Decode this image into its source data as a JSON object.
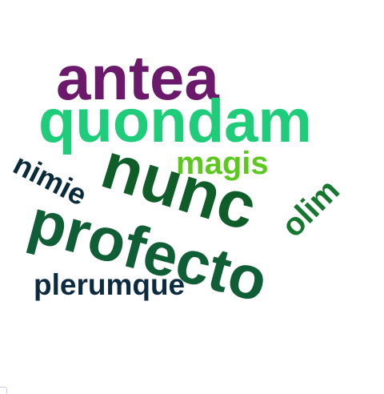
{
  "words": {
    "antea": {
      "text": "antea",
      "color": "#6b1a6b"
    },
    "quondam": {
      "text": "quondam",
      "color": "#1fcc7a"
    },
    "nunc": {
      "text": "nunc",
      "color": "#0f5e2a"
    },
    "magis": {
      "text": "magis",
      "color": "#5cc81e"
    },
    "nimie": {
      "text": "nimie",
      "color": "#0b2a3a"
    },
    "olim": {
      "text": "olim",
      "color": "#16782f"
    },
    "profecto": {
      "text": "profecto",
      "color": "#0f5e35"
    },
    "plerumque": {
      "text": "plerumque",
      "color": "#0d2b40"
    }
  }
}
